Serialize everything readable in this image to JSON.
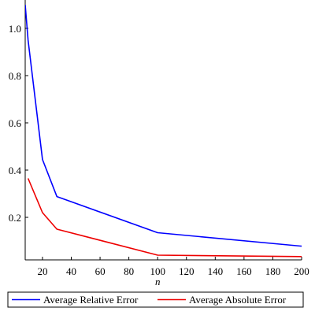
{
  "chart_data": {
    "type": "line",
    "title": "",
    "xlabel": "n",
    "ylabel": "",
    "xlim": [
      8,
      200
    ],
    "ylim": [
      0.02,
      1.1
    ],
    "x_ticks": [
      20,
      40,
      60,
      80,
      100,
      120,
      140,
      160,
      180,
      200
    ],
    "x_tick_labels": [
      "20",
      "40",
      "60",
      "80",
      "100",
      "120",
      "140",
      "160",
      "180",
      "200"
    ],
    "y_ticks": [
      0.2,
      0.4,
      0.6,
      0.8,
      1.0
    ],
    "y_tick_labels": [
      "0.2",
      "0.4",
      "0.6",
      "0.8",
      "1.0"
    ],
    "grid": false,
    "legend_position": "bottom",
    "series": [
      {
        "name": "Average Relative Error",
        "color": "#0000ff",
        "x": [
          8,
          10,
          20,
          30,
          100,
          200
        ],
        "y": [
          1.1,
          0.95,
          0.445,
          0.288,
          0.135,
          0.078
        ]
      },
      {
        "name": "Average Absolute Error",
        "color": "#ee0000",
        "x": [
          10,
          20,
          30,
          100,
          200
        ],
        "y": [
          0.365,
          0.22,
          0.15,
          0.04,
          0.034
        ]
      }
    ]
  }
}
